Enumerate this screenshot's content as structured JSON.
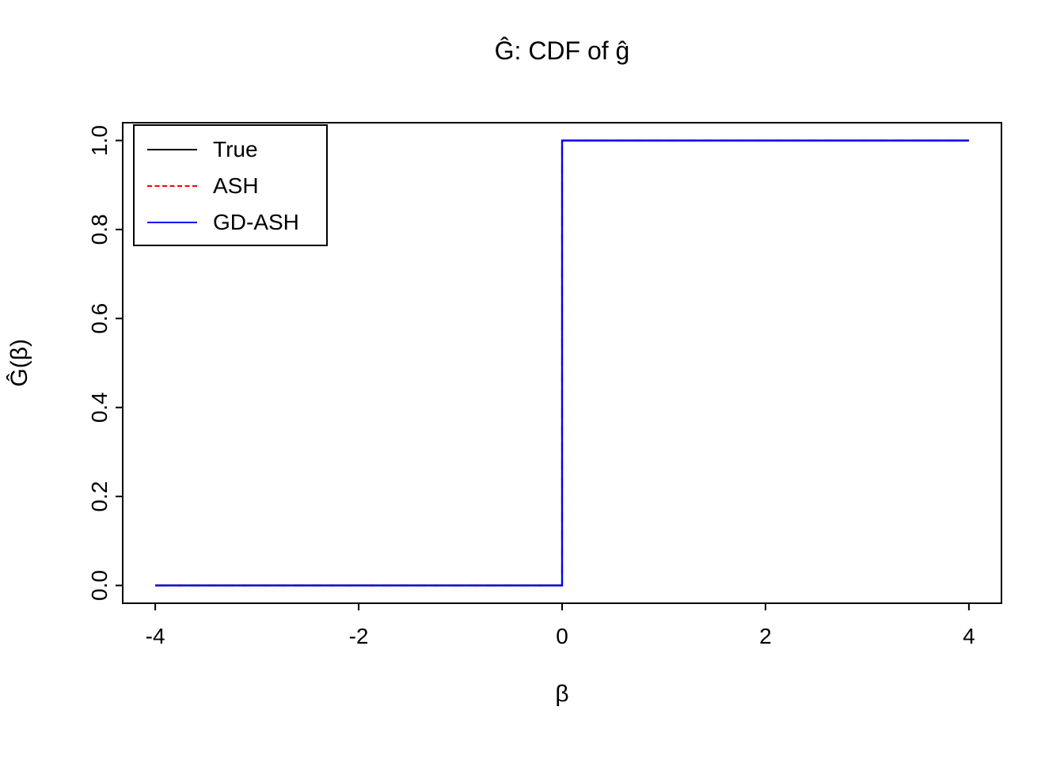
{
  "chart_data": {
    "type": "line",
    "title": "Ĝ: CDF of ĝ",
    "xlabel": "β",
    "ylabel": "Ĝ(β)",
    "xlim": [
      -4,
      4
    ],
    "ylim": [
      0,
      1
    ],
    "grid": false,
    "legend_position": "top-left",
    "x_ticks": [
      {
        "value": -4,
        "label": "-4"
      },
      {
        "value": -2,
        "label": "-2"
      },
      {
        "value": 0,
        "label": "0"
      },
      {
        "value": 2,
        "label": "2"
      },
      {
        "value": 4,
        "label": "4"
      }
    ],
    "y_ticks": [
      {
        "value": 0.0,
        "label": "0.0"
      },
      {
        "value": 0.2,
        "label": "0.2"
      },
      {
        "value": 0.4,
        "label": "0.4"
      },
      {
        "value": 0.6,
        "label": "0.6"
      },
      {
        "value": 0.8,
        "label": "0.8"
      },
      {
        "value": 1.0,
        "label": "1.0"
      }
    ],
    "series": [
      {
        "name": "True",
        "color": "#000000",
        "style": "solid",
        "x": [
          -4,
          0,
          0,
          4
        ],
        "y": [
          0,
          0,
          1,
          1
        ]
      },
      {
        "name": "ASH",
        "color": "#FF0000",
        "style": "dashed",
        "x": [
          -4,
          0,
          0,
          4
        ],
        "y": [
          0,
          0,
          1,
          1
        ]
      },
      {
        "name": "GD-ASH",
        "color": "#0000FF",
        "style": "solid",
        "x": [
          -4,
          0,
          0,
          4
        ],
        "y": [
          0,
          0,
          1,
          1
        ]
      }
    ]
  }
}
